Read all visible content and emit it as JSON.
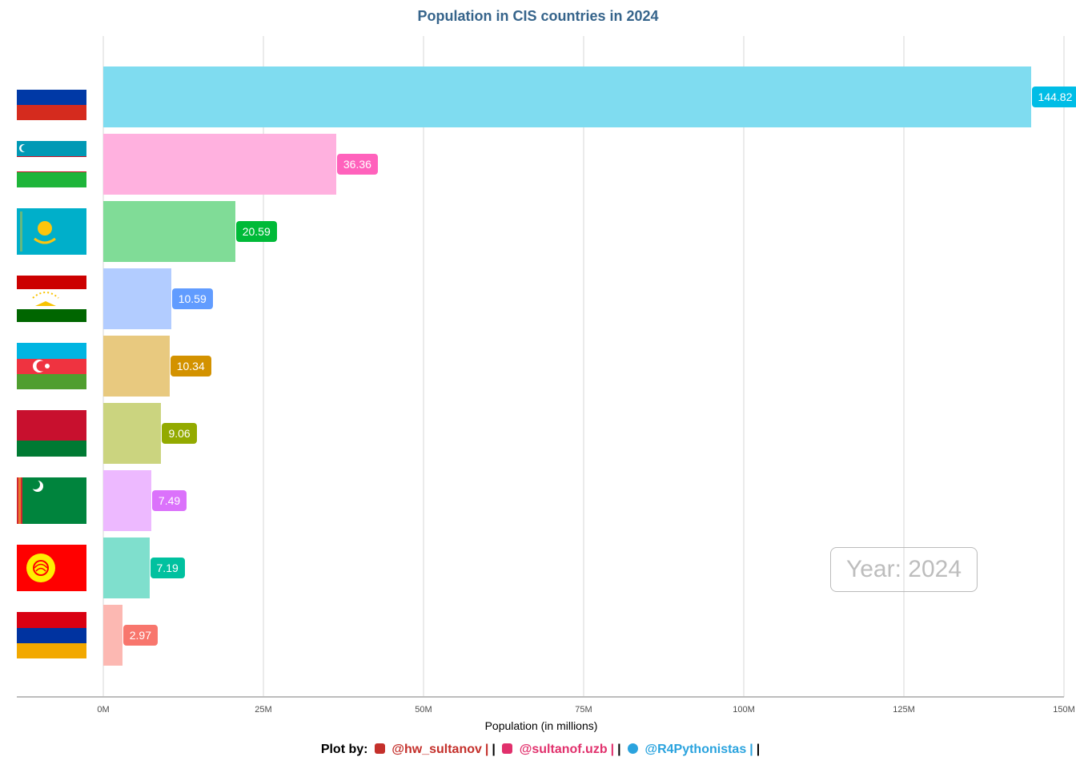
{
  "chart_data": {
    "type": "bar",
    "orientation": "horizontal",
    "title": "Population in CIS countries in 2024",
    "xlabel": "Population (in millions)",
    "ylabel": "",
    "xlim": [
      0,
      150
    ],
    "xticks": [
      "0M",
      "25M",
      "50M",
      "75M",
      "100M",
      "125M",
      "150M"
    ],
    "grid": true,
    "categories": [
      "flag-russia",
      "flag-uzbekistan",
      "flag-kazakhstan",
      "flag-tajikistan",
      "flag-azerbaijan",
      "flag-belarus",
      "flag-turkmenistan",
      "flag-kyrgyzstan",
      "flag-armenia"
    ],
    "values": [
      144.82,
      36.36,
      20.59,
      10.59,
      10.34,
      9.06,
      7.49,
      7.19,
      2.97
    ],
    "value_labels": [
      "144.82",
      "36.36",
      "20.59",
      "10.59",
      "10.34",
      "9.06",
      "7.49",
      "7.19",
      "2.97"
    ],
    "bar_colors": [
      "#7fdcf0",
      "#ffb1df",
      "#80dc97",
      "#b2ccff",
      "#e8c97f",
      "#cbd47f",
      "#edb9ff",
      "#7fdfcd",
      "#fcb8b2"
    ],
    "label_colors": [
      "#00bde6",
      "#ff62bc",
      "#00ba38",
      "#619cff",
      "#d39200",
      "#93aa00",
      "#db72fb",
      "#00c19f",
      "#f8766d"
    ],
    "annotation": "Year: 2024"
  },
  "caption": {
    "prefix": "Plot by:",
    "youtube": "@hw_sultanov",
    "instagram": "@sultanof.uzb",
    "telegram": "@R4Pythonistas",
    "sep": "|",
    "colors": {
      "youtube": "#c4302b",
      "instagram": "#e1306c",
      "telegram": "#2aa3de"
    }
  }
}
